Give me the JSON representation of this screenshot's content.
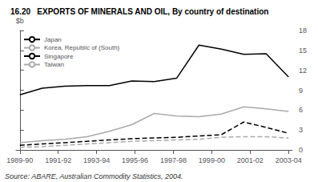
{
  "chart_data": {
    "type": "line",
    "title": "16.20   EXPORTS OF MINERALS AND OIL, By country of destination",
    "y_label": "$b",
    "annotations": [
      "Source: ABARE, Australian Commodity Statistics, 2004."
    ],
    "x": [
      0,
      1.167,
      2.333,
      3.5,
      4.667,
      5.833,
      7.0,
      8.167,
      9.333,
      10.5,
      11.667,
      12.833,
      14.0
    ],
    "xlim": [
      -0.2,
      14.2
    ],
    "xticks": [
      {
        "value": 0,
        "label": "1989-90"
      },
      {
        "value": 2,
        "label": "1991-92"
      },
      {
        "value": 4,
        "label": "1993-94"
      },
      {
        "value": 6,
        "label": "1995-96"
      },
      {
        "value": 8,
        "label": "1997-98"
      },
      {
        "value": 10,
        "label": "1999-00"
      },
      {
        "value": 12,
        "label": "2001-02"
      },
      {
        "value": 14,
        "label": "2003-04"
      }
    ],
    "ylim": [
      0,
      18
    ],
    "yticks": [
      0,
      3,
      6,
      9,
      12,
      15,
      18
    ],
    "grid": false,
    "legend": "upper left",
    "series": [
      {
        "name": "Japan",
        "color": "#000000",
        "line_style": "solid",
        "values": [
          8.3,
          9.3,
          9.6,
          9.7,
          9.7,
          10.4,
          10.3,
          10.8,
          15.8,
          15.2,
          14.4,
          14.5,
          11.0
        ]
      },
      {
        "name": "Korea, Republic of (South)",
        "color": "#aaaaaa",
        "line_style": "solid",
        "values": [
          1.1,
          1.4,
          1.6,
          2.0,
          2.8,
          3.8,
          5.5,
          5.1,
          5.0,
          5.4,
          6.5,
          6.2,
          5.8
        ]
      },
      {
        "name": "Singapore",
        "color": "#000000",
        "line_style": "dashed",
        "values": [
          0.7,
          0.9,
          1.1,
          1.3,
          1.5,
          1.7,
          1.8,
          1.9,
          2.1,
          2.3,
          4.2,
          3.4,
          2.5
        ]
      },
      {
        "name": "Taiwan",
        "color": "#aaaaaa",
        "line_style": "dashed",
        "values": [
          0.4,
          0.5,
          0.7,
          0.9,
          1.1,
          1.3,
          1.4,
          1.5,
          1.6,
          1.9,
          2.0,
          2.0,
          1.8
        ]
      }
    ]
  }
}
